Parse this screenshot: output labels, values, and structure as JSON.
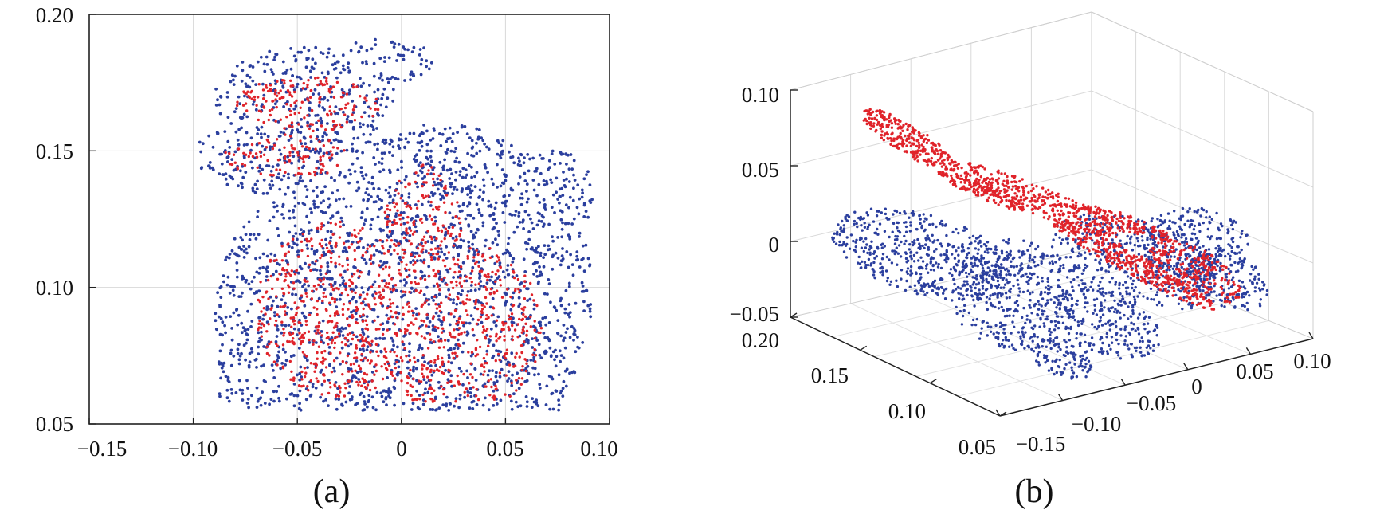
{
  "chart_data": [
    {
      "type": "scatter",
      "caption": "(a)",
      "xlim": [
        -0.15,
        0.1
      ],
      "ylim": [
        0.05,
        0.2
      ],
      "xticks": [
        "−0.15",
        "−0.10",
        "−0.05",
        "0",
        "0.05",
        "0.10"
      ],
      "yticks": [
        "0.05",
        "0.10",
        "0.15",
        "0.20"
      ],
      "grid": true,
      "colors": {
        "blue": "#2b3f9e",
        "red": "#e0232a"
      },
      "series": [
        {
          "color": "blue",
          "point_count_approx": 3000
        },
        {
          "color": "red",
          "point_count_approx": 1800
        }
      ]
    },
    {
      "type": "scatter",
      "caption": "(b)",
      "projection": "3d",
      "xlim": [
        -0.15,
        0.1
      ],
      "ylim": [
        0.05,
        0.2
      ],
      "zlim": [
        -0.05,
        0.1
      ],
      "xticks": [
        "−0.15",
        "−0.10",
        "−0.05",
        "0",
        "0.05",
        "0.10"
      ],
      "yticks": [
        "0.05",
        "0.10",
        "0.15",
        "0.20"
      ],
      "zticks": [
        "−0.05",
        "0",
        "0.05",
        "0.10"
      ],
      "grid": true,
      "colors": {
        "blue": "#2b3f9e",
        "red": "#e0232a"
      },
      "series": [
        {
          "color": "blue",
          "point_count_approx": 3000
        },
        {
          "color": "red",
          "point_count_approx": 1800
        }
      ]
    }
  ]
}
